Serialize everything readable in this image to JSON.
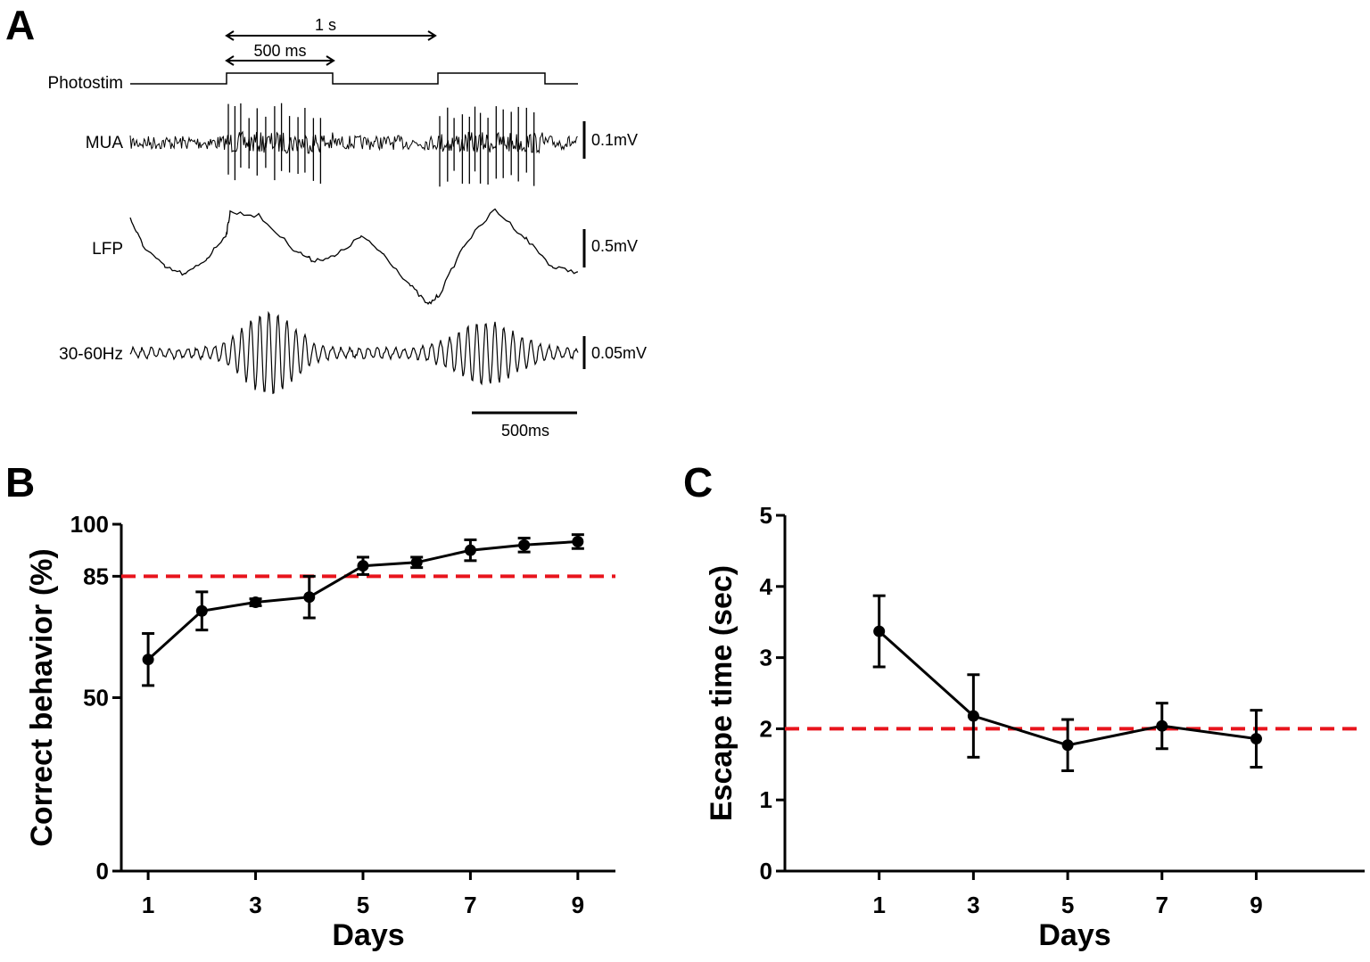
{
  "panel_a": {
    "letter": "A",
    "time_marker_long": "1 s",
    "time_marker_short": "500 ms",
    "traces": [
      {
        "label": "Photostim",
        "scale": ""
      },
      {
        "label": "MUA",
        "scale": "0.1mV"
      },
      {
        "label": "LFP",
        "scale": "0.5mV"
      },
      {
        "label": "30-60Hz",
        "scale": "0.05mV"
      }
    ],
    "time_scalebar": "500ms"
  },
  "chart_data": [
    {
      "type": "line",
      "panel": "B",
      "title": "",
      "xlabel": "Days",
      "ylabel": "Correct behavior (%)",
      "x": [
        1,
        2,
        3,
        4,
        5,
        6,
        7,
        8,
        9
      ],
      "y": [
        61,
        75,
        77.5,
        79,
        88,
        89,
        92.5,
        94,
        95
      ],
      "err": [
        7.5,
        5.5,
        1,
        6,
        2.5,
        1.5,
        3,
        2,
        2
      ],
      "xlim": [
        0.5,
        9.7
      ],
      "ylim": [
        0,
        100
      ],
      "xticks": [
        1,
        3,
        5,
        7,
        9
      ],
      "yticks": [
        0,
        50,
        85,
        100
      ],
      "threshold": 85,
      "threshold_color": "#e8141c",
      "line_color": "#000000"
    },
    {
      "type": "line",
      "panel": "C",
      "title": "",
      "xlabel": "Days",
      "ylabel": "Escape time (sec)",
      "x": [
        1,
        3,
        5,
        7,
        9
      ],
      "y": [
        3.37,
        2.18,
        1.77,
        2.04,
        1.86
      ],
      "err": [
        0.5,
        0.58,
        0.36,
        0.32,
        0.4
      ],
      "xlim": [
        -1,
        11.3
      ],
      "ylim": [
        0,
        5
      ],
      "xticks": [
        1,
        3,
        5,
        7,
        9
      ],
      "yticks": [
        0,
        1,
        2,
        3,
        4,
        5
      ],
      "threshold": 2,
      "threshold_color": "#e8141c",
      "line_color": "#000000"
    }
  ]
}
